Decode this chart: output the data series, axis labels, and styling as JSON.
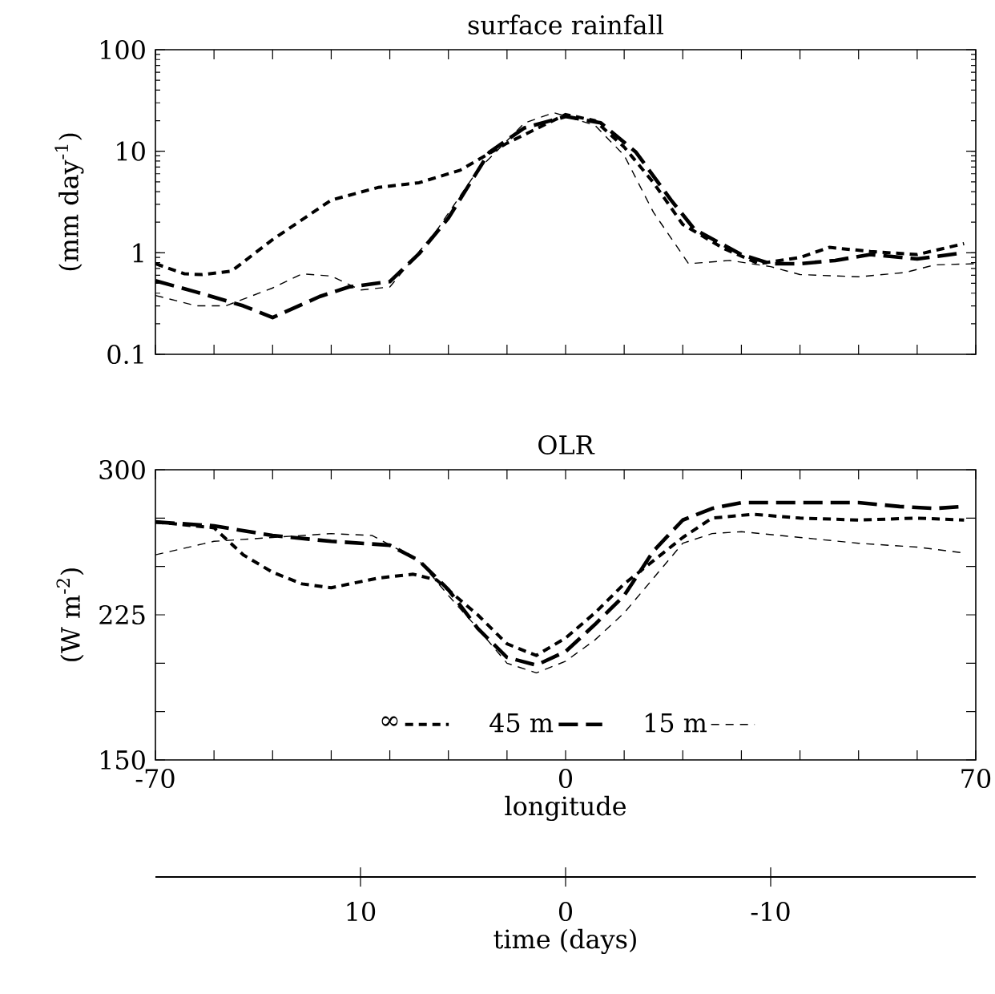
{
  "chart_data": [
    {
      "type": "line",
      "title": "surface rainfall",
      "ylabel": "(mm day$^{-1}$)",
      "log": true,
      "line_style": "dashed",
      "legend": false,
      "tick_labels": "y",
      "xlim": [
        -70,
        70
      ],
      "xticks": [
        {
          "value": -70,
          "label": null
        },
        {
          "value": -60,
          "label": null
        },
        {
          "value": -50,
          "label": null
        },
        {
          "value": -40,
          "label": null
        },
        {
          "value": -30,
          "label": null
        },
        {
          "value": -20,
          "label": null
        },
        {
          "value": -10,
          "label": null
        },
        {
          "value": 0,
          "label": null
        },
        {
          "value": 10,
          "label": null
        },
        {
          "value": 20,
          "label": null
        },
        {
          "value": 30,
          "label": null
        },
        {
          "value": 40,
          "label": null
        },
        {
          "value": 50,
          "label": null
        },
        {
          "value": 60,
          "label": null
        },
        {
          "value": 70,
          "label": null
        }
      ],
      "ylim": [
        0.1,
        100
      ],
      "yticks": [
        0.1,
        1,
        10,
        100
      ],
      "series": [
        {
          "color": "#000000",
          "x": [
            -70,
            -65,
            -62,
            -57,
            -50,
            -40,
            -32,
            -25,
            -18,
            -10,
            0,
            5,
            10,
            15,
            20,
            27,
            33,
            40,
            45,
            52,
            60,
            68
          ],
          "values": [
            0.78,
            0.62,
            0.61,
            0.66,
            1.35,
            3.3,
            4.4,
            4.9,
            6.5,
            12,
            23,
            20,
            11,
            4.9,
            1.9,
            1.1,
            0.78,
            0.9,
            1.13,
            1.03,
            0.96,
            1.23
          ]
        },
        {
          "color": "#000000",
          "x": [
            -70,
            -63,
            -55,
            -50,
            -42,
            -37,
            -30,
            -25,
            -20,
            -13,
            -7,
            0,
            6,
            12,
            18,
            22,
            30,
            35,
            40,
            46,
            52,
            60,
            68
          ],
          "values": [
            0.53,
            0.41,
            0.3,
            0.23,
            0.37,
            0.46,
            0.52,
            0.98,
            2.2,
            9.8,
            17,
            22,
            19,
            9.8,
            3.3,
            1.7,
            0.96,
            0.78,
            0.78,
            0.84,
            0.96,
            0.87,
            1.0
          ]
        },
        {
          "color": "#000000",
          "x": [
            -70,
            -63,
            -58,
            -50,
            -45,
            -40,
            -35,
            -30,
            -22,
            -15,
            -7,
            -2,
            5,
            10,
            15,
            21,
            28,
            35,
            40,
            50,
            58,
            63,
            70
          ],
          "values": [
            0.38,
            0.3,
            0.3,
            0.45,
            0.62,
            0.59,
            0.43,
            0.46,
            1.66,
            6.5,
            19,
            24,
            18,
            9.1,
            2.5,
            0.78,
            0.84,
            0.73,
            0.61,
            0.58,
            0.64,
            0.76,
            0.78
          ]
        }
      ]
    },
    {
      "type": "line",
      "title": "OLR",
      "ylabel": "(W m$^{-2}$)",
      "xlabel": "longitude",
      "line_style": "dashed",
      "legend": "bottom",
      "xlim": [
        -70,
        70
      ],
      "xticks": [
        -70,
        {
          "value": -60,
          "label": null
        },
        {
          "value": -50,
          "label": null
        },
        {
          "value": -40,
          "label": null
        },
        {
          "value": -30,
          "label": null
        },
        {
          "value": -20,
          "label": null
        },
        {
          "value": -10,
          "label": null
        },
        0,
        {
          "value": 10,
          "label": null
        },
        {
          "value": 20,
          "label": null
        },
        {
          "value": 30,
          "label": null
        },
        {
          "value": 40,
          "label": null
        },
        {
          "value": 50,
          "label": null
        },
        {
          "value": 60,
          "label": null
        },
        70
      ],
      "ylim": [
        150,
        300
      ],
      "yticks": [
        150,
        {
          "value": 175,
          "label": null
        },
        {
          "value": 200,
          "label": null
        },
        225,
        {
          "value": 250,
          "label": null
        },
        {
          "value": 275,
          "label": null
        },
        300
      ],
      "x2lim": [
        20,
        -20
      ],
      "x2ticks": [
        10,
        0,
        -10
      ],
      "x2label": "time (days)",
      "series": [
        {
          "name": "∞",
          "color": "#000000",
          "x": [
            -70,
            -60,
            -55,
            -50,
            -45,
            -40,
            -32,
            -26,
            -22,
            -15,
            -10,
            -5,
            0,
            5,
            10,
            15,
            20,
            25,
            32,
            40,
            50,
            60,
            68
          ],
          "values": [
            273,
            270,
            256,
            247,
            241,
            239,
            244,
            246,
            243,
            225,
            210,
            204,
            213,
            226,
            241,
            253,
            265,
            275,
            277,
            275,
            274,
            275,
            274
          ]
        },
        {
          "name": "45 m",
          "color": "#000000",
          "x": [
            -70,
            -60,
            -50,
            -40,
            -30,
            -25,
            -20,
            -15,
            -10,
            -5,
            0,
            5,
            10,
            15,
            20,
            25,
            30,
            40,
            50,
            57,
            63,
            68
          ],
          "values": [
            273,
            271,
            266,
            263,
            261,
            253,
            238,
            218,
            203,
            199,
            206,
            220,
            235,
            258,
            274,
            280,
            283,
            283,
            283,
            281,
            280,
            281
          ]
        },
        {
          "name": "15 m",
          "color": "#000000",
          "x": [
            -70,
            -60,
            -50,
            -40,
            -33,
            -25,
            -20,
            -15,
            -10,
            -5,
            0,
            5,
            10,
            15,
            20,
            25,
            30,
            40,
            50,
            60,
            68
          ],
          "values": [
            256,
            263,
            265,
            267,
            266,
            253,
            235,
            218,
            200,
            195,
            201,
            212,
            226,
            244,
            262,
            267,
            268,
            265,
            262,
            260,
            257
          ]
        }
      ]
    }
  ]
}
